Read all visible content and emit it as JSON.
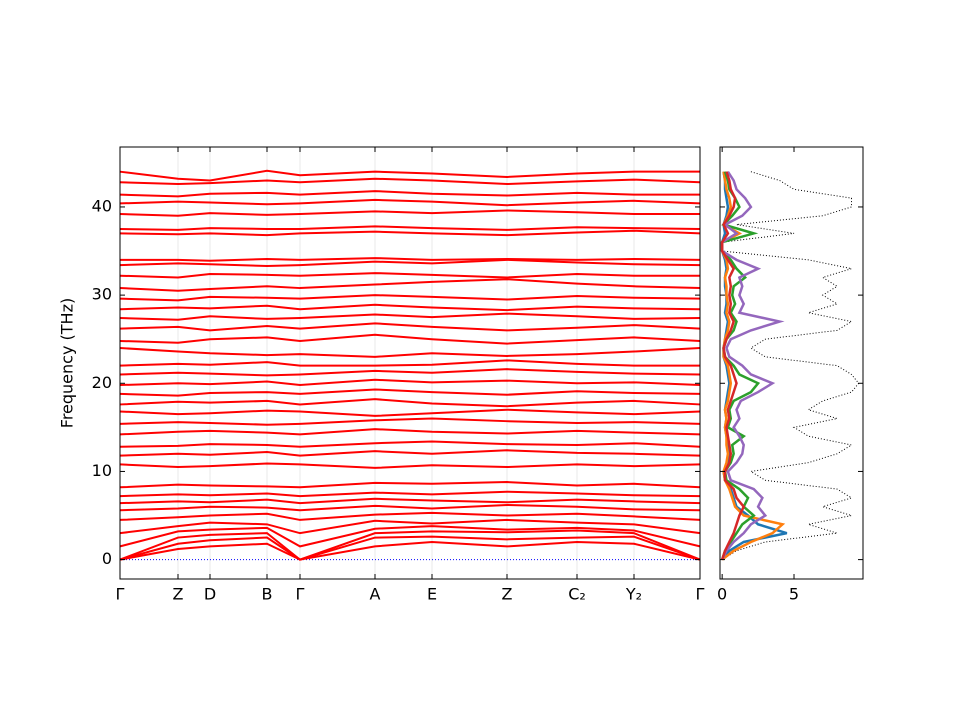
{
  "chart_data": [
    {
      "type": "line",
      "ylabel": "Frequency (THz)",
      "color": "#ff0000",
      "x": [
        0,
        58,
        90,
        147,
        180,
        255,
        312,
        387,
        457,
        514,
        580
      ],
      "xlim": [
        0,
        580
      ],
      "xticks": [
        {
          "value": 0,
          "label": "Γ"
        },
        {
          "value": 58,
          "label": "Z"
        },
        {
          "value": 90,
          "label": "D"
        },
        {
          "value": 147,
          "label": "B"
        },
        {
          "value": 180,
          "label": "Γ"
        },
        {
          "value": 255,
          "label": "A"
        },
        {
          "value": 312,
          "label": "E"
        },
        {
          "value": 387,
          "label": "Z"
        },
        {
          "value": 457,
          "label": "C₂"
        },
        {
          "value": 514,
          "label": "Y₂"
        },
        {
          "value": 580,
          "label": "Γ"
        }
      ],
      "ylim": [
        -2.2,
        46.8
      ],
      "yticks": [
        0,
        10,
        20,
        30,
        40
      ],
      "hline": {
        "value": 0,
        "color": "#0000ff"
      },
      "series": [
        {
          "values": [
            0,
            1.2,
            1.5,
            1.8,
            0,
            1.5,
            2.0,
            1.5,
            2.0,
            1.8,
            0
          ]
        },
        {
          "values": [
            0,
            1.8,
            2.2,
            2.5,
            0,
            2.5,
            2.6,
            2.3,
            2.5,
            2.6,
            0
          ]
        },
        {
          "values": [
            0,
            2.5,
            2.8,
            3.0,
            0,
            3.0,
            3.2,
            3.1,
            3.3,
            3.0,
            0
          ]
        },
        {
          "values": [
            1.5,
            3.2,
            3.4,
            3.6,
            1.5,
            3.5,
            3.8,
            3.4,
            3.6,
            3.3,
            1.5
          ]
        },
        {
          "values": [
            3.0,
            3.8,
            4.2,
            4.0,
            3.0,
            4.4,
            4.1,
            4.5,
            4.2,
            4.0,
            3.0
          ]
        },
        {
          "values": [
            4.5,
            4.8,
            5.0,
            5.2,
            4.5,
            5.1,
            5.3,
            5.0,
            5.2,
            4.9,
            4.5
          ]
        },
        {
          "values": [
            5.6,
            5.8,
            6.0,
            5.9,
            5.6,
            6.1,
            5.8,
            6.2,
            6.0,
            5.7,
            5.6
          ]
        },
        {
          "values": [
            6.4,
            6.6,
            6.5,
            6.8,
            6.4,
            6.9,
            6.7,
            6.5,
            6.8,
            6.6,
            6.4
          ]
        },
        {
          "values": [
            7.2,
            7.4,
            7.3,
            7.5,
            7.2,
            7.6,
            7.4,
            7.7,
            7.5,
            7.3,
            7.2
          ]
        },
        {
          "values": [
            8.2,
            8.5,
            8.4,
            8.3,
            8.2,
            8.7,
            8.6,
            8.8,
            8.4,
            8.6,
            8.2
          ]
        },
        {
          "values": [
            10.8,
            10.5,
            10.6,
            10.9,
            10.8,
            10.4,
            10.7,
            10.5,
            10.8,
            10.6,
            10.8
          ]
        },
        {
          "values": [
            11.8,
            12.0,
            11.9,
            12.2,
            11.8,
            12.3,
            12.0,
            12.4,
            12.1,
            12.0,
            11.8
          ]
        },
        {
          "values": [
            12.8,
            12.9,
            13.1,
            13.0,
            12.8,
            13.2,
            13.4,
            13.1,
            13.0,
            13.2,
            12.8
          ]
        },
        {
          "values": [
            14.2,
            14.5,
            14.6,
            14.4,
            14.2,
            14.8,
            14.5,
            14.3,
            14.6,
            14.4,
            14.2
          ]
        },
        {
          "values": [
            15.4,
            15.6,
            15.5,
            15.3,
            15.4,
            15.8,
            16.0,
            15.7,
            15.5,
            15.6,
            15.4
          ]
        },
        {
          "values": [
            16.8,
            16.5,
            16.6,
            16.9,
            16.8,
            16.3,
            16.6,
            17.0,
            16.7,
            16.5,
            16.8
          ]
        },
        {
          "values": [
            17.6,
            17.9,
            17.8,
            18.0,
            17.6,
            18.2,
            17.7,
            17.4,
            17.8,
            18.0,
            17.6
          ]
        },
        {
          "values": [
            18.8,
            18.6,
            18.9,
            19.0,
            18.8,
            19.3,
            19.0,
            18.7,
            19.1,
            18.9,
            18.8
          ]
        },
        {
          "values": [
            19.8,
            20.0,
            19.9,
            20.2,
            19.8,
            20.4,
            20.1,
            20.3,
            20.0,
            20.1,
            19.8
          ]
        },
        {
          "values": [
            21.0,
            21.2,
            21.1,
            20.9,
            21.0,
            21.4,
            21.2,
            21.6,
            21.3,
            21.1,
            21.0
          ]
        },
        {
          "values": [
            22.0,
            22.2,
            22.1,
            22.4,
            22.0,
            22.0,
            22.1,
            22.6,
            22.2,
            22.0,
            22.0
          ]
        },
        {
          "values": [
            24.0,
            23.6,
            23.4,
            23.2,
            23.3,
            23.0,
            23.4,
            23.1,
            23.3,
            23.6,
            24.0
          ]
        },
        {
          "values": [
            24.8,
            24.6,
            25.0,
            25.2,
            24.8,
            25.5,
            25.0,
            24.5,
            24.9,
            25.2,
            24.8
          ]
        },
        {
          "values": [
            26.2,
            26.4,
            26.0,
            26.5,
            26.2,
            26.8,
            26.4,
            26.0,
            26.3,
            26.6,
            26.2
          ]
        },
        {
          "values": [
            27.4,
            27.2,
            27.6,
            27.3,
            27.4,
            27.8,
            27.5,
            27.9,
            27.6,
            27.3,
            27.4
          ]
        },
        {
          "values": [
            28.4,
            28.6,
            28.5,
            28.8,
            28.4,
            28.9,
            28.6,
            28.3,
            28.7,
            28.5,
            28.4
          ]
        },
        {
          "values": [
            29.6,
            29.4,
            29.8,
            29.7,
            29.6,
            30.0,
            29.8,
            29.5,
            29.9,
            29.7,
            29.6
          ]
        },
        {
          "values": [
            30.8,
            30.5,
            30.7,
            31.0,
            30.8,
            31.2,
            31.5,
            31.8,
            31.3,
            31.0,
            30.8
          ]
        },
        {
          "values": [
            32.2,
            32.0,
            32.4,
            32.3,
            32.2,
            32.5,
            32.3,
            32.0,
            32.4,
            32.2,
            32.2
          ]
        },
        {
          "values": [
            33.4,
            33.6,
            33.5,
            33.3,
            33.4,
            33.8,
            33.6,
            34.0,
            33.7,
            33.5,
            33.4
          ]
        },
        {
          "values": [
            34.0,
            34.0,
            33.9,
            34.1,
            34.0,
            34.2,
            34.0,
            34.1,
            34.0,
            34.1,
            34.0
          ]
        },
        {
          "values": [
            37.0,
            36.9,
            37.0,
            36.8,
            37.0,
            37.2,
            37.0,
            36.8,
            37.1,
            37.3,
            37.0
          ]
        },
        {
          "values": [
            37.5,
            37.4,
            37.6,
            37.5,
            37.5,
            37.8,
            37.6,
            37.4,
            37.7,
            37.6,
            37.5
          ]
        },
        {
          "values": [
            39.2,
            39.0,
            39.3,
            39.1,
            39.2,
            39.5,
            39.3,
            39.6,
            39.4,
            39.2,
            39.2
          ]
        },
        {
          "values": [
            40.4,
            40.6,
            40.5,
            40.3,
            40.4,
            40.8,
            40.6,
            40.2,
            40.5,
            40.7,
            40.4
          ]
        },
        {
          "values": [
            41.4,
            41.2,
            41.5,
            41.6,
            41.4,
            41.8,
            41.5,
            41.3,
            41.6,
            41.4,
            41.4
          ]
        },
        {
          "values": [
            42.8,
            42.6,
            42.7,
            43.0,
            42.8,
            43.2,
            43.0,
            42.6,
            42.9,
            43.1,
            42.8
          ]
        },
        {
          "values": [
            44.0,
            43.2,
            43.0,
            44.1,
            43.6,
            44.0,
            43.8,
            43.4,
            43.8,
            44.0,
            44.0
          ]
        }
      ]
    },
    {
      "type": "line",
      "orientation": "horizontal",
      "xlim": [
        -0.15,
        9.8
      ],
      "xticks": [
        0,
        5
      ],
      "ylim": [
        -2.2,
        46.8
      ],
      "yticks": [
        0,
        10,
        20,
        30,
        40
      ],
      "y": [
        0,
        1,
        2,
        3,
        4,
        5,
        6,
        7,
        8,
        9,
        10,
        11,
        12,
        13,
        14,
        15,
        16,
        17,
        18,
        19,
        20,
        21,
        22,
        23,
        24,
        25,
        26,
        27,
        28,
        29,
        30,
        31,
        32,
        33,
        34,
        35,
        36,
        37,
        38,
        39,
        40,
        41,
        42,
        43,
        44
      ],
      "series": [
        {
          "color": "#000000",
          "style": "dotted",
          "values": [
            0,
            1,
            3,
            8,
            6,
            9,
            7,
            9,
            8,
            3,
            2,
            6,
            8,
            9,
            6,
            5,
            8,
            6,
            7,
            9,
            9.5,
            9,
            8,
            3,
            2,
            3,
            8,
            9,
            6,
            8,
            7,
            8,
            7,
            9,
            6,
            0,
            0,
            5,
            1,
            7,
            9,
            9,
            5,
            4,
            2
          ]
        },
        {
          "color": "#1f77b4",
          "style": "solid",
          "values": [
            0,
            0.5,
            1.5,
            4.5,
            2.5,
            1.8,
            1.0,
            0.8,
            0.6,
            0.2,
            0.1,
            0.4,
            0.5,
            0.4,
            0.3,
            0.2,
            0.3,
            0.2,
            0.3,
            0.4,
            0.5,
            0.4,
            0.3,
            0.1,
            0.1,
            0.2,
            0.3,
            0.4,
            0.2,
            0.3,
            0.3,
            0.2,
            0.2,
            0.3,
            0.2,
            0,
            0,
            0.2,
            0.1,
            0.3,
            0.4,
            0.3,
            0.2,
            0.2,
            0.1
          ]
        },
        {
          "color": "#ff7f0e",
          "style": "solid",
          "values": [
            0,
            0.8,
            2.0,
            3.5,
            4.2,
            1.5,
            0.9,
            0.7,
            0.5,
            0.2,
            0.1,
            0.3,
            0.4,
            0.3,
            0.3,
            0.2,
            0.3,
            0.2,
            0.4,
            0.5,
            0.6,
            0.5,
            0.4,
            0.1,
            0.1,
            0.2,
            0.4,
            0.5,
            0.3,
            0.4,
            0.3,
            0.3,
            0.2,
            0.4,
            0.3,
            0,
            0,
            1.2,
            0.1,
            0.4,
            0.6,
            0.5,
            0.3,
            0.2,
            0.1
          ]
        },
        {
          "color": "#2ca02c",
          "style": "solid",
          "values": [
            0,
            0.2,
            0.6,
            1.0,
            1.4,
            2.2,
            1.5,
            1.8,
            1.2,
            0.3,
            0.2,
            0.6,
            0.8,
            0.7,
            1.5,
            0.4,
            0.6,
            0.5,
            0.8,
            2.0,
            2.5,
            1.2,
            0.8,
            0.2,
            0.1,
            0.3,
            0.8,
            1.0,
            0.6,
            0.9,
            0.7,
            0.8,
            1.6,
            1.0,
            0.6,
            0,
            0,
            2.2,
            0.1,
            0.7,
            1.2,
            0.9,
            0.5,
            0.4,
            0.2
          ]
        },
        {
          "color": "#9467bd",
          "style": "solid",
          "values": [
            0,
            0.3,
            0.8,
            1.5,
            2.0,
            3.0,
            2.5,
            2.8,
            2.2,
            0.6,
            0.4,
            1.0,
            1.4,
            1.5,
            1.2,
            0.8,
            1.2,
            1.0,
            1.3,
            2.5,
            3.5,
            2.0,
            1.4,
            0.5,
            0.3,
            0.6,
            2.0,
            4.0,
            1.2,
            1.5,
            1.2,
            1.4,
            1.2,
            2.5,
            1.0,
            0,
            0,
            1.0,
            0.2,
            1.4,
            2.0,
            1.6,
            1.0,
            0.8,
            0.4
          ]
        },
        {
          "color": "#d62728",
          "style": "solid",
          "values": [
            0,
            0.2,
            0.5,
            0.8,
            1.0,
            1.2,
            1.5,
            1.0,
            0.8,
            0.2,
            0.2,
            0.5,
            0.6,
            0.5,
            0.4,
            0.3,
            0.5,
            0.4,
            0.6,
            0.8,
            1.0,
            0.8,
            0.6,
            0.2,
            0.1,
            0.3,
            0.6,
            0.8,
            0.5,
            0.6,
            0.5,
            0.6,
            0.5,
            0.8,
            0.4,
            0,
            0,
            0.4,
            0.1,
            0.5,
            0.8,
            0.9,
            0.6,
            0.5,
            0.3
          ]
        }
      ]
    }
  ]
}
